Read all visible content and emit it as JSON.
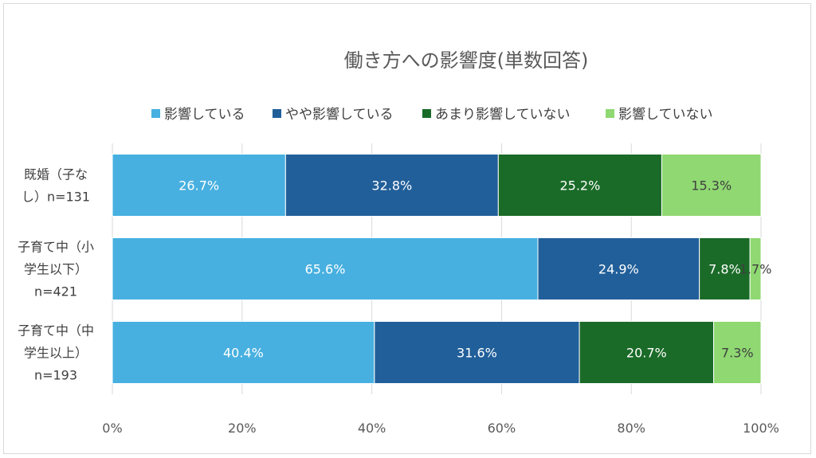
{
  "chart_data": {
    "type": "bar",
    "orientation": "horizontal",
    "stacked": true,
    "title": "働き方への影響度(単数回答)",
    "categories": [
      {
        "lines": [
          "既婚（子な",
          "し）n=131"
        ]
      },
      {
        "lines": [
          "子育て中（小",
          "学生以下）",
          "n=421"
        ]
      },
      {
        "lines": [
          "子育て中（中",
          "学生以上）",
          "n=193"
        ]
      }
    ],
    "series": [
      {
        "name": "影響している",
        "color": "#47b0e0",
        "label_color": "#ffffff",
        "values": [
          26.7,
          65.6,
          40.4
        ],
        "labels": [
          "26.7%",
          "65.6%",
          "40.4%"
        ]
      },
      {
        "name": "やや影響している",
        "color": "#215f9a",
        "label_color": "#ffffff",
        "values": [
          32.8,
          24.9,
          31.6
        ],
        "labels": [
          "32.8%",
          "24.9%",
          "31.6%"
        ]
      },
      {
        "name": "あまり影響していない",
        "color": "#1a6b28",
        "label_color": "#ffffff",
        "values": [
          25.2,
          7.8,
          20.7
        ],
        "labels": [
          "25.2%",
          "7.8%",
          "20.7%"
        ]
      },
      {
        "name": "影響していない",
        "color": "#8fd872",
        "label_color": "#404040",
        "values": [
          15.3,
          1.7,
          7.3
        ],
        "labels": [
          "15.3%",
          "1.7%",
          "7.3%"
        ]
      }
    ],
    "xlim": [
      0,
      100
    ],
    "xticks": [
      "0%",
      "20%",
      "40%",
      "60%",
      "80%",
      "100%"
    ],
    "grid": true,
    "legend": "top"
  }
}
